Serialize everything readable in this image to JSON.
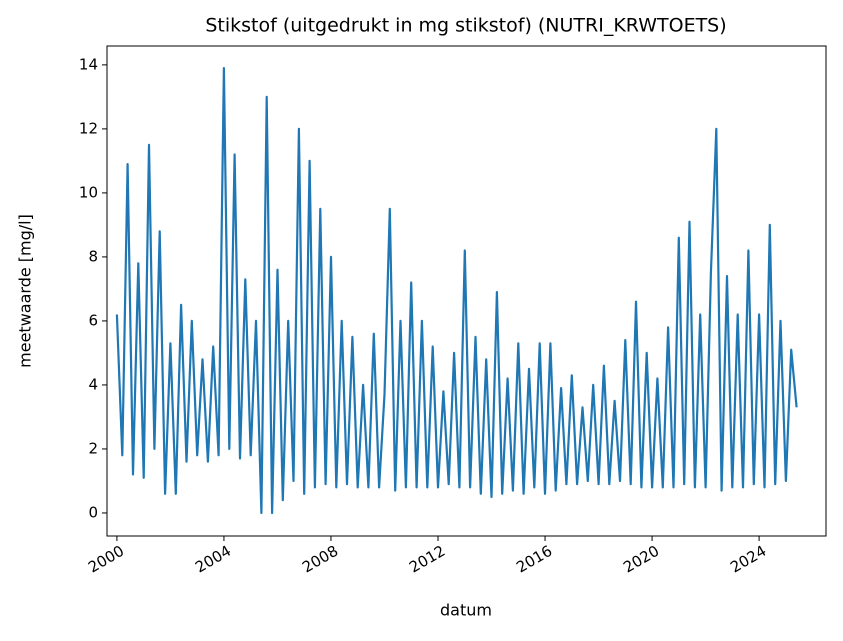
{
  "chart_data": {
    "type": "line",
    "title": "Stikstof (uitgedrukt in mg stikstof) (NUTRI_KRWTOETS)",
    "xlabel": "datum",
    "ylabel": "meetwaarde [mg/l]",
    "xlim": [
      1999.63,
      2026.5
    ],
    "ylim": [
      -0.72,
      14.59
    ],
    "xticks": [
      2000,
      2004,
      2008,
      2012,
      2016,
      2020,
      2024
    ],
    "yticks": [
      0,
      2,
      4,
      6,
      8,
      10,
      12,
      14
    ],
    "x": [
      2000.0,
      2000.2,
      2000.4,
      2000.6,
      2000.8,
      2001.0,
      2001.2,
      2001.4,
      2001.6,
      2001.8,
      2002.0,
      2002.2,
      2002.4,
      2002.6,
      2002.8,
      2003.0,
      2003.2,
      2003.4,
      2003.6,
      2003.8,
      2004.0,
      2004.2,
      2004.4,
      2004.6,
      2004.8,
      2005.0,
      2005.2,
      2005.4,
      2005.6,
      2005.8,
      2006.0,
      2006.2,
      2006.4,
      2006.6,
      2006.8,
      2007.0,
      2007.2,
      2007.4,
      2007.6,
      2007.8,
      2008.0,
      2008.2,
      2008.4,
      2008.6,
      2008.8,
      2009.0,
      2009.2,
      2009.4,
      2009.6,
      2009.8,
      2010.0,
      2010.2,
      2010.4,
      2010.6,
      2010.8,
      2011.0,
      2011.2,
      2011.4,
      2011.6,
      2011.8,
      2012.0,
      2012.2,
      2012.4,
      2012.6,
      2012.8,
      2013.0,
      2013.2,
      2013.4,
      2013.6,
      2013.8,
      2014.0,
      2014.2,
      2014.4,
      2014.6,
      2014.8,
      2015.0,
      2015.2,
      2015.4,
      2015.6,
      2015.8,
      2016.0,
      2016.2,
      2016.4,
      2016.6,
      2016.8,
      2017.0,
      2017.2,
      2017.4,
      2017.6,
      2017.8,
      2018.0,
      2018.2,
      2018.4,
      2018.6,
      2018.8,
      2019.0,
      2019.2,
      2019.4,
      2019.6,
      2019.8,
      2020.0,
      2020.2,
      2020.4,
      2020.6,
      2020.8,
      2021.0,
      2021.2,
      2021.4,
      2021.6,
      2021.8,
      2022.0,
      2022.2,
      2022.4,
      2022.6,
      2022.8,
      2023.0,
      2023.2,
      2023.4,
      2023.6,
      2023.8,
      2024.0,
      2024.2,
      2024.4,
      2024.6,
      2024.8,
      2025.0,
      2025.2,
      2025.4
    ],
    "series": [
      {
        "color": "#1f77b4",
        "values": [
          6.2,
          1.8,
          10.9,
          1.2,
          7.8,
          1.1,
          11.5,
          2.0,
          8.8,
          0.6,
          5.3,
          0.6,
          6.5,
          1.6,
          6.0,
          1.8,
          4.8,
          1.6,
          5.2,
          1.8,
          13.9,
          2.0,
          11.2,
          1.7,
          7.3,
          1.8,
          6.0,
          0.0,
          13.0,
          0.0,
          7.6,
          0.4,
          6.0,
          1.0,
          12.0,
          0.6,
          11.0,
          0.8,
          9.5,
          0.9,
          8.0,
          0.8,
          6.0,
          0.9,
          5.5,
          0.8,
          4.0,
          0.8,
          5.6,
          0.8,
          3.7,
          9.5,
          0.7,
          6.0,
          0.8,
          7.2,
          0.8,
          6.0,
          0.8,
          5.2,
          0.8,
          3.8,
          0.9,
          5.0,
          0.8,
          8.2,
          0.8,
          5.5,
          0.6,
          4.8,
          0.5,
          6.9,
          0.6,
          4.2,
          0.7,
          5.3,
          0.6,
          4.5,
          0.8,
          5.3,
          0.6,
          5.3,
          0.7,
          3.9,
          0.9,
          4.3,
          0.9,
          3.3,
          1.0,
          4.0,
          0.9,
          4.6,
          0.9,
          3.5,
          1.0,
          5.4,
          0.9,
          6.6,
          0.8,
          5.0,
          0.8,
          4.2,
          0.8,
          5.8,
          0.8,
          8.6,
          0.9,
          9.1,
          0.8,
          6.2,
          0.8,
          7.5,
          12.0,
          0.7,
          7.4,
          0.8,
          6.2,
          0.8,
          8.2,
          0.9,
          6.2,
          0.8,
          9.0,
          0.9,
          6.0,
          1.0,
          5.1,
          3.3
        ]
      }
    ]
  }
}
